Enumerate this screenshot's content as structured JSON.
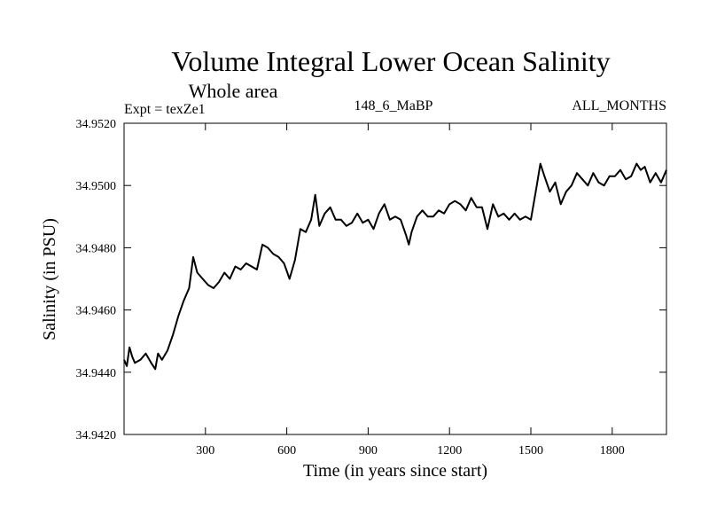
{
  "chart_data": {
    "type": "line",
    "title": "Volume Integral Lower Ocean Salinity",
    "subtitle": "Whole area",
    "experiment": "Expt = texZe1",
    "run_label": "148_6_MaBP",
    "period_label": "ALL_MONTHS",
    "xlabel": "Time (in years since start)",
    "ylabel": "Salinity (in PSU)",
    "xlim": [
      0,
      2000
    ],
    "ylim": [
      34.942,
      34.952
    ],
    "xticks": [
      300,
      600,
      900,
      1200,
      1500,
      1800
    ],
    "yticks": [
      34.942,
      34.944,
      34.946,
      34.948,
      34.95,
      34.952
    ],
    "ytick_labels": [
      "34.9420",
      "34.9440",
      "34.9460",
      "34.9480",
      "34.9500",
      "34.9520"
    ],
    "grid": false,
    "legend": "none",
    "series": [
      {
        "name": "Salinity",
        "color": "#000000",
        "x": [
          0,
          10,
          20,
          30,
          40,
          60,
          80,
          100,
          115,
          125,
          140,
          160,
          180,
          200,
          220,
          240,
          255,
          270,
          290,
          310,
          330,
          350,
          370,
          390,
          410,
          430,
          450,
          470,
          490,
          510,
          530,
          550,
          570,
          590,
          610,
          630,
          650,
          670,
          690,
          705,
          720,
          740,
          760,
          780,
          800,
          820,
          840,
          860,
          880,
          900,
          920,
          940,
          960,
          980,
          1000,
          1020,
          1040,
          1050,
          1060,
          1080,
          1100,
          1120,
          1140,
          1160,
          1180,
          1200,
          1220,
          1240,
          1260,
          1280,
          1300,
          1320,
          1340,
          1360,
          1380,
          1400,
          1420,
          1440,
          1460,
          1480,
          1500,
          1520,
          1535,
          1550,
          1570,
          1590,
          1610,
          1630,
          1650,
          1670,
          1690,
          1710,
          1730,
          1750,
          1770,
          1790,
          1810,
          1830,
          1850,
          1870,
          1890,
          1905,
          1920,
          1940,
          1960,
          1980,
          2000
        ],
        "values": [
          34.9444,
          34.9442,
          34.9448,
          34.9445,
          34.9443,
          34.9444,
          34.9446,
          34.9443,
          34.9441,
          34.9446,
          34.9444,
          34.9447,
          34.9452,
          34.9458,
          34.9463,
          34.9467,
          34.9477,
          34.9472,
          34.947,
          34.9468,
          34.9467,
          34.9469,
          34.9472,
          34.947,
          34.9474,
          34.9473,
          34.9475,
          34.9474,
          34.9473,
          34.9481,
          34.948,
          34.9478,
          34.9477,
          34.9475,
          34.947,
          34.9476,
          34.9486,
          34.9485,
          34.9489,
          34.9497,
          34.9487,
          34.9491,
          34.9493,
          34.9489,
          34.9489,
          34.9487,
          34.9488,
          34.9491,
          34.9488,
          34.9489,
          34.9486,
          34.9491,
          34.9494,
          34.9489,
          34.949,
          34.9489,
          34.9484,
          34.9481,
          34.9485,
          34.949,
          34.9492,
          34.949,
          34.949,
          34.9492,
          34.9491,
          34.9494,
          34.9495,
          34.9494,
          34.9492,
          34.9496,
          34.9493,
          34.9493,
          34.9486,
          34.9494,
          34.949,
          34.9491,
          34.9489,
          34.9491,
          34.9489,
          34.949,
          34.9489,
          34.9499,
          34.9507,
          34.9503,
          34.9498,
          34.9501,
          34.9494,
          34.9498,
          34.95,
          34.9504,
          34.9502,
          34.95,
          34.9504,
          34.9501,
          34.95,
          34.9503,
          34.9503,
          34.9505,
          34.9502,
          34.9503,
          34.9507,
          34.9505,
          34.9506,
          34.9501,
          34.9504,
          34.9501,
          34.9505
        ]
      }
    ]
  }
}
